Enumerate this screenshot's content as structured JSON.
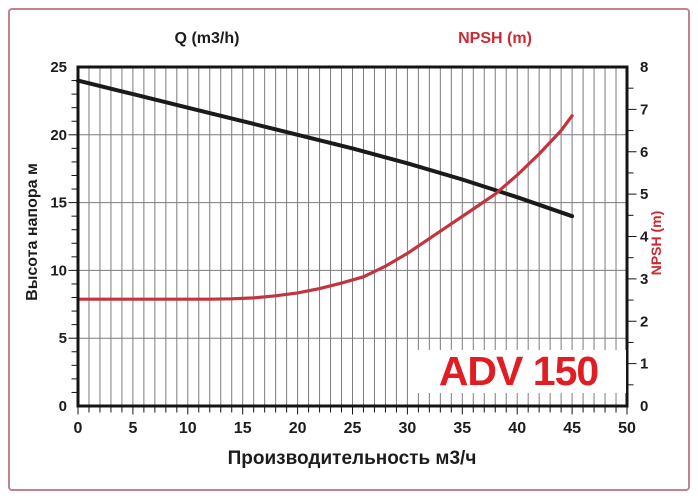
{
  "page": {
    "background": "#ffffff",
    "border_color": "#bf858c"
  },
  "chart_data": {
    "type": "line",
    "title_top_left": "Q (m3/h)",
    "title_top_right": "NPSH (m)",
    "xlabel": "Производительность м3/ч",
    "ylabel_left": "Высота напора м",
    "ylabel_right": "NPSH (m)",
    "model_label": "ADV 150",
    "grid": true,
    "legend_position": "none",
    "x_axis": {
      "min": 0,
      "max": 50,
      "ticks": [
        0,
        5,
        10,
        15,
        20,
        25,
        30,
        35,
        40,
        45,
        50
      ],
      "minor_step": 1,
      "grid_step": 1
    },
    "y_left_axis": {
      "min": 0,
      "max": 25,
      "ticks": [
        0,
        5,
        10,
        15,
        20,
        25
      ],
      "minor_step": 1,
      "grid_step": 5
    },
    "y_right_axis": {
      "min": 0,
      "max": 8,
      "ticks": [
        0,
        1,
        2,
        3,
        4,
        5,
        6,
        7,
        8
      ],
      "minor_step": 0.5
    },
    "series": [
      {
        "name": "head-curve",
        "axis": "left",
        "color": "#1a1a1a",
        "stroke_width": 4,
        "x": [
          0,
          5,
          10,
          15,
          20,
          25,
          30,
          35,
          40,
          45
        ],
        "y": [
          24,
          23,
          22,
          21,
          20,
          19,
          17.9,
          16.7,
          15.4,
          14
        ]
      },
      {
        "name": "npsh-curve",
        "axis": "right",
        "color": "#c23540",
        "stroke_width": 3.2,
        "x": [
          0,
          2,
          4,
          6,
          8,
          10,
          12,
          14,
          16,
          18,
          20,
          22,
          24,
          26,
          28,
          30,
          32,
          34,
          36,
          38,
          40,
          42,
          44,
          45
        ],
        "y": [
          2.52,
          2.52,
          2.52,
          2.52,
          2.52,
          2.52,
          2.52,
          2.53,
          2.55,
          2.6,
          2.67,
          2.77,
          2.9,
          3.05,
          3.3,
          3.6,
          3.95,
          4.3,
          4.65,
          5.0,
          5.45,
          5.95,
          6.5,
          6.85
        ]
      }
    ],
    "colors": {
      "grid": "#7c7c7c",
      "frame": "#141414",
      "tick_text": "#1c1c1c",
      "red_text": "#cc2a33",
      "model_red": "#e01d23"
    }
  }
}
